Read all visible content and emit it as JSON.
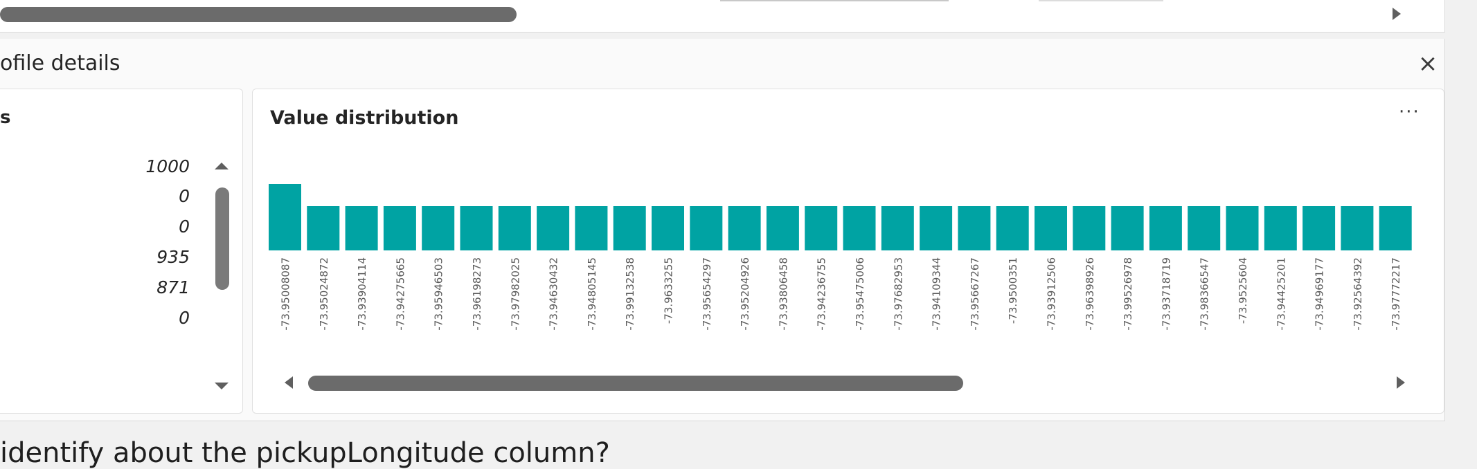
{
  "profile_panel": {
    "title": "ofile details",
    "close_glyph": "×",
    "close_icon": "close-icon"
  },
  "statistics": {
    "title": "s",
    "values": [
      "1000",
      "0",
      "0",
      "935",
      "871",
      "0"
    ]
  },
  "value_distribution": {
    "title": "Value distribution",
    "more_glyph": "···",
    "more_icon": "more-options-icon",
    "bar_color": "#00a3a3"
  },
  "chart_data": {
    "type": "bar",
    "categories": [
      "-73.95008087",
      "-73.95024872",
      "-73.93904114",
      "-73.94275665",
      "-73.95946503",
      "-73.96198273",
      "-73.97982025",
      "-73.94630432",
      "-73.94805145",
      "-73.99132538",
      "-73.9633255",
      "-73.95654297",
      "-73.95204926",
      "-73.93806458",
      "-73.94236755",
      "-73.95475006",
      "-73.97682953",
      "-73.94109344",
      "-73.95667267",
      "-73.9500351",
      "-73.93912506",
      "-73.96398926",
      "-73.99526978",
      "-73.93718719",
      "-73.98366547",
      "-73.9525604",
      "-73.94425201",
      "-73.94969177",
      "-73.92564392",
      "-73.97772217"
    ],
    "values": [
      3,
      2,
      2,
      2,
      2,
      2,
      2,
      2,
      2,
      2,
      2,
      2,
      2,
      2,
      2,
      2,
      2,
      2,
      2,
      2,
      2,
      2,
      2,
      2,
      2,
      2,
      2,
      2,
      2,
      2
    ],
    "title": "Value distribution",
    "xlabel": "",
    "ylabel": "",
    "ylim": [
      0,
      3
    ],
    "grid": false
  },
  "question_text": "identify about the pickupLongitude column?"
}
